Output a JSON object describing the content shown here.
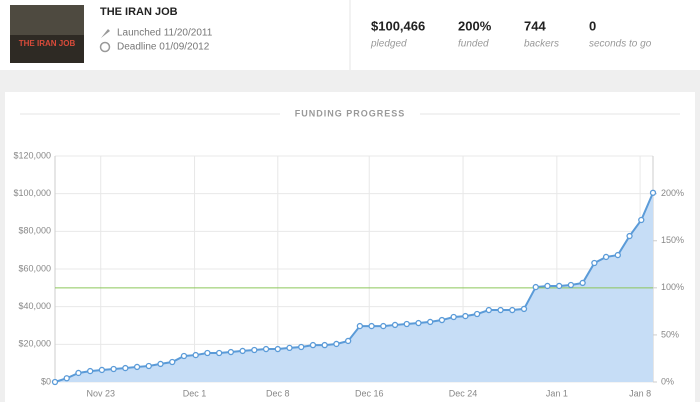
{
  "header": {
    "title": "THE IRAN JOB",
    "thumbnail_text": "THE IRAN JOB",
    "launched": "Launched 11/20/2011",
    "deadline": "Deadline 01/09/2012",
    "stats": [
      {
        "value": "$100,466",
        "label": "pledged"
      },
      {
        "value": "200%",
        "label": "funded"
      },
      {
        "value": "744",
        "label": "backers"
      },
      {
        "value": "0",
        "label": "seconds to go"
      }
    ]
  },
  "chart_data": {
    "type": "area",
    "title": "FUNDING PROGRESS",
    "x": [
      0,
      1,
      2,
      3,
      4,
      5,
      6,
      7,
      8,
      9,
      10,
      11,
      12,
      13,
      14,
      15,
      16,
      17,
      18,
      19,
      20,
      21,
      22,
      23,
      24,
      25,
      26,
      27,
      28,
      29,
      30,
      31,
      32,
      33,
      34,
      35,
      36,
      37,
      38,
      39,
      40,
      41,
      42,
      43,
      44,
      45,
      46,
      47,
      48,
      49,
      50,
      51
    ],
    "series": [
      {
        "name": "pledged",
        "color": "#5b9bd8",
        "fill": "#c6ddf6",
        "values": [
          0,
          2000,
          4800,
          5800,
          6400,
          6900,
          7400,
          8000,
          8500,
          9600,
          10600,
          13800,
          14300,
          15400,
          15400,
          15900,
          16500,
          17000,
          17500,
          17500,
          18100,
          18600,
          19600,
          19600,
          20200,
          21800,
          29700,
          29700,
          29700,
          30300,
          30800,
          31300,
          31900,
          32900,
          34500,
          35000,
          36100,
          38200,
          38200,
          38200,
          38800,
          50400,
          51000,
          51000,
          51500,
          52600,
          63200,
          66400,
          67400,
          77500,
          86000,
          100466
        ]
      }
    ],
    "xlim": [
      0,
      51
    ],
    "xticks": [
      {
        "value": 3.9,
        "label": "Nov 23"
      },
      {
        "value": 11.9,
        "label": "Dec 1"
      },
      {
        "value": 19,
        "label": "Dec 8"
      },
      {
        "value": 26.8,
        "label": "Dec 16"
      },
      {
        "value": 34.8,
        "label": "Dec 24"
      },
      {
        "value": 42.8,
        "label": "Jan 1"
      },
      {
        "value": 49.9,
        "label": "Jan 8"
      }
    ],
    "ylim": [
      0,
      120000
    ],
    "yticks": [
      {
        "value": 0,
        "label": "$0"
      },
      {
        "value": 20000,
        "label": "$20,000"
      },
      {
        "value": 40000,
        "label": "$40,000"
      },
      {
        "value": 60000,
        "label": "$60,000"
      },
      {
        "value": 80000,
        "label": "$80,000"
      },
      {
        "value": 100000,
        "label": "$100,000"
      },
      {
        "value": 120000,
        "label": "$120,000"
      }
    ],
    "y2lim": [
      0,
      240
    ],
    "y2ticks": [
      {
        "value": 0,
        "label": "0%"
      },
      {
        "value": 50,
        "label": "50%"
      },
      {
        "value": 100,
        "label": "100%"
      },
      {
        "value": 150,
        "label": "150%"
      },
      {
        "value": 200,
        "label": "200%"
      }
    ],
    "goal_line": 50000,
    "goal_color": "#8cc65a",
    "grid": true
  }
}
